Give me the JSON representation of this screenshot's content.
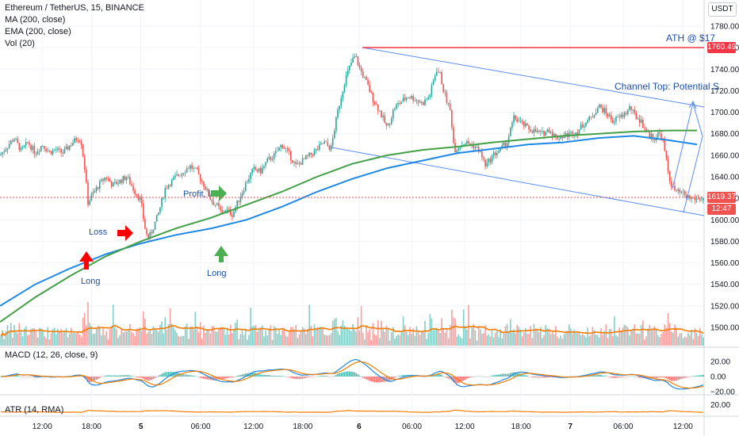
{
  "header": {
    "symbol_line": "Ethereum / TetherUS, 15, BINANCE",
    "indicators": [
      "MA (200, close)",
      "EMA (200, close)",
      "Vol (20)"
    ]
  },
  "macd_label": "MACD (12, 26, close, 9)",
  "atr_label": "ATR (14, RMA)",
  "currency_button": "USDT",
  "annotations": {
    "ath": "ATH @ $17",
    "channel_top": "Channel Top: Potential S",
    "loss": "Loss",
    "long1": "Long",
    "long2": "Long",
    "profit": "Profit, l"
  },
  "price_labels": {
    "ath_price": "1760.49",
    "last_price": "1619.37",
    "countdown": "12:47",
    "top_partial": "1800.00"
  },
  "colors": {
    "ath_line": "#f23645",
    "channel": "#5b8def",
    "ma": "#1e88e5",
    "ema": "#43a047",
    "vol_ma": "#f57c00",
    "up": "#26a69a",
    "down": "#ef5350",
    "last_price_bg": "#ef5350",
    "ath_label_bg": "#f23645",
    "arrow_red": "#ff0000",
    "arrow_green": "#4caf50"
  },
  "chart_data": {
    "type": "candlestick",
    "price_axis": {
      "ticks": [
        1500,
        1520,
        1540,
        1560,
        1580,
        1600,
        1620,
        1640,
        1660,
        1680,
        1700,
        1720,
        1740,
        1760,
        1780
      ],
      "tick_labels": [
        "1500.00",
        "1520.00",
        "1540.00",
        "1560.00",
        "1580.00",
        "1600.00",
        "1620.00",
        "1640.00",
        "1660.00",
        "1680.00",
        "1700.00",
        "1720.00",
        "1740.00",
        "1760.00",
        "1780.00"
      ]
    },
    "macd_axis": {
      "ticks": [
        20,
        0,
        -20
      ],
      "tick_labels": [
        "20.00",
        "0.00",
        "−20.00"
      ]
    },
    "atr_axis": {
      "ticks": [
        20
      ],
      "tick_labels": [
        "20.00"
      ]
    },
    "time_axis": {
      "labels": [
        "12:00",
        "18:00",
        "5",
        "06:00",
        "12:00",
        "18:00",
        "6",
        "06:00",
        "12:00",
        "18:00",
        "7",
        "06:00",
        "12:00"
      ],
      "positions": [
        0.06,
        0.13,
        0.2,
        0.285,
        0.36,
        0.43,
        0.51,
        0.585,
        0.66,
        0.74,
        0.81,
        0.885,
        0.97
      ]
    },
    "close_path": [
      [
        0.0,
        1660
      ],
      [
        0.01,
        1668
      ],
      [
        0.02,
        1676
      ],
      [
        0.03,
        1664
      ],
      [
        0.04,
        1672
      ],
      [
        0.05,
        1662
      ],
      [
        0.06,
        1670
      ],
      [
        0.07,
        1663
      ],
      [
        0.08,
        1665
      ],
      [
        0.09,
        1662
      ],
      [
        0.1,
        1670
      ],
      [
        0.11,
        1676
      ],
      [
        0.115,
        1674
      ],
      [
        0.12,
        1650
      ],
      [
        0.125,
        1616
      ],
      [
        0.13,
        1622
      ],
      [
        0.14,
        1632
      ],
      [
        0.15,
        1640
      ],
      [
        0.16,
        1632
      ],
      [
        0.17,
        1636
      ],
      [
        0.18,
        1640
      ],
      [
        0.19,
        1628
      ],
      [
        0.2,
        1618
      ],
      [
        0.205,
        1595
      ],
      [
        0.21,
        1582
      ],
      [
        0.215,
        1588
      ],
      [
        0.225,
        1606
      ],
      [
        0.235,
        1630
      ],
      [
        0.25,
        1640
      ],
      [
        0.26,
        1645
      ],
      [
        0.27,
        1650
      ],
      [
        0.28,
        1644
      ],
      [
        0.29,
        1632
      ],
      [
        0.3,
        1618
      ],
      [
        0.31,
        1612
      ],
      [
        0.315,
        1605
      ],
      [
        0.32,
        1610
      ],
      [
        0.33,
        1605
      ],
      [
        0.34,
        1620
      ],
      [
        0.35,
        1635
      ],
      [
        0.36,
        1647
      ],
      [
        0.37,
        1645
      ],
      [
        0.38,
        1655
      ],
      [
        0.39,
        1660
      ],
      [
        0.4,
        1670
      ],
      [
        0.41,
        1662
      ],
      [
        0.42,
        1650
      ],
      [
        0.43,
        1655
      ],
      [
        0.44,
        1660
      ],
      [
        0.45,
        1665
      ],
      [
        0.46,
        1672
      ],
      [
        0.47,
        1666
      ],
      [
        0.48,
        1702
      ],
      [
        0.49,
        1730
      ],
      [
        0.5,
        1748
      ],
      [
        0.505,
        1752
      ],
      [
        0.51,
        1742
      ],
      [
        0.52,
        1728
      ],
      [
        0.53,
        1712
      ],
      [
        0.54,
        1700
      ],
      [
        0.55,
        1685
      ],
      [
        0.56,
        1704
      ],
      [
        0.57,
        1710
      ],
      [
        0.58,
        1715
      ],
      [
        0.59,
        1712
      ],
      [
        0.6,
        1708
      ],
      [
        0.61,
        1715
      ],
      [
        0.62,
        1740
      ],
      [
        0.625,
        1735
      ],
      [
        0.63,
        1720
      ],
      [
        0.64,
        1700
      ],
      [
        0.645,
        1665
      ],
      [
        0.66,
        1672
      ],
      [
        0.67,
        1670
      ],
      [
        0.68,
        1665
      ],
      [
        0.69,
        1650
      ],
      [
        0.7,
        1660
      ],
      [
        0.71,
        1665
      ],
      [
        0.72,
        1672
      ],
      [
        0.73,
        1695
      ],
      [
        0.74,
        1690
      ],
      [
        0.75,
        1685
      ],
      [
        0.76,
        1682
      ],
      [
        0.77,
        1680
      ],
      [
        0.78,
        1684
      ],
      [
        0.79,
        1676
      ],
      [
        0.8,
        1678
      ],
      [
        0.81,
        1680
      ],
      [
        0.82,
        1682
      ],
      [
        0.83,
        1690
      ],
      [
        0.84,
        1695
      ],
      [
        0.85,
        1706
      ],
      [
        0.86,
        1700
      ],
      [
        0.87,
        1692
      ],
      [
        0.88,
        1695
      ],
      [
        0.89,
        1700
      ],
      [
        0.895,
        1705
      ],
      [
        0.9,
        1698
      ],
      [
        0.91,
        1692
      ],
      [
        0.92,
        1680
      ],
      [
        0.93,
        1676
      ],
      [
        0.935,
        1680
      ],
      [
        0.94,
        1678
      ],
      [
        0.945,
        1660
      ],
      [
        0.95,
        1640
      ],
      [
        0.955,
        1630
      ],
      [
        0.96,
        1626
      ],
      [
        0.97,
        1624
      ],
      [
        0.98,
        1620
      ],
      [
        0.99,
        1619.37
      ]
    ],
    "ma_path": [
      [
        0.0,
        1520
      ],
      [
        0.05,
        1540
      ],
      [
        0.1,
        1555
      ],
      [
        0.15,
        1568
      ],
      [
        0.2,
        1578
      ],
      [
        0.25,
        1586
      ],
      [
        0.3,
        1592
      ],
      [
        0.35,
        1600
      ],
      [
        0.4,
        1612
      ],
      [
        0.45,
        1626
      ],
      [
        0.5,
        1638
      ],
      [
        0.55,
        1648
      ],
      [
        0.6,
        1655
      ],
      [
        0.65,
        1662
      ],
      [
        0.7,
        1666
      ],
      [
        0.75,
        1670
      ],
      [
        0.8,
        1672
      ],
      [
        0.85,
        1676
      ],
      [
        0.9,
        1678
      ],
      [
        0.95,
        1674
      ],
      [
        0.99,
        1670
      ]
    ],
    "ema_path": [
      [
        0.0,
        1505
      ],
      [
        0.05,
        1528
      ],
      [
        0.1,
        1548
      ],
      [
        0.15,
        1566
      ],
      [
        0.2,
        1580
      ],
      [
        0.25,
        1592
      ],
      [
        0.3,
        1602
      ],
      [
        0.35,
        1614
      ],
      [
        0.4,
        1626
      ],
      [
        0.45,
        1640
      ],
      [
        0.5,
        1652
      ],
      [
        0.55,
        1660
      ],
      [
        0.6,
        1665
      ],
      [
        0.65,
        1668
      ],
      [
        0.7,
        1672
      ],
      [
        0.75,
        1675
      ],
      [
        0.8,
        1678
      ],
      [
        0.85,
        1680
      ],
      [
        0.9,
        1682
      ],
      [
        0.95,
        1683
      ],
      [
        0.99,
        1683
      ]
    ]
  }
}
